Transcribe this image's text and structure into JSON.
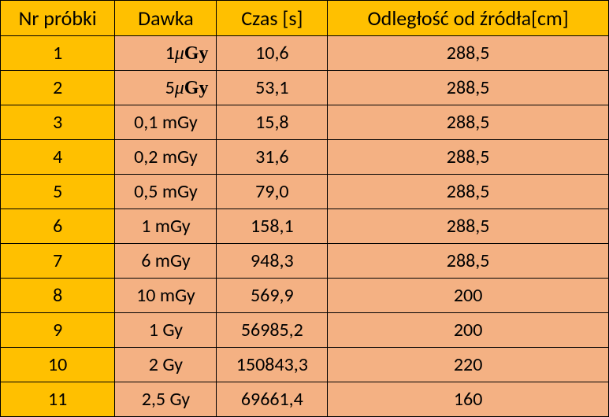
{
  "columns": {
    "sample": "Nr próbki",
    "dose": "Dawka",
    "time": "Czas [s]",
    "distance": "Odległość od źródła[cm]"
  },
  "mu_unit": "Gy",
  "rows": [
    {
      "n": "1",
      "dose_pre": "1",
      "dose_mu": true,
      "dose_post": "",
      "time": "10,6",
      "dist": "288,5",
      "dose_align": "right"
    },
    {
      "n": "2",
      "dose_pre": "5",
      "dose_mu": true,
      "dose_post": "",
      "time": "53,1",
      "dist": "288,5",
      "dose_align": "right"
    },
    {
      "n": "3",
      "dose_pre": "0,1 mGy",
      "dose_mu": false,
      "dose_post": "",
      "time": "15,8",
      "dist": "288,5",
      "dose_align": "center"
    },
    {
      "n": "4",
      "dose_pre": "0,2 mGy",
      "dose_mu": false,
      "dose_post": "",
      "time": "31,6",
      "dist": "288,5",
      "dose_align": "center"
    },
    {
      "n": "5",
      "dose_pre": "0,5 mGy",
      "dose_mu": false,
      "dose_post": "",
      "time": "79,0",
      "dist": "288,5",
      "dose_align": "center"
    },
    {
      "n": "6",
      "dose_pre": "1 mGy",
      "dose_mu": false,
      "dose_post": "",
      "time": "158,1",
      "dist": "288,5",
      "dose_align": "center"
    },
    {
      "n": "7",
      "dose_pre": "6 mGy",
      "dose_mu": false,
      "dose_post": "",
      "time": "948,3",
      "dist": "288,5",
      "dose_align": "center"
    },
    {
      "n": "8",
      "dose_pre": "10 mGy",
      "dose_mu": false,
      "dose_post": "",
      "time": "569,9",
      "dist": "200",
      "dose_align": "center"
    },
    {
      "n": "9",
      "dose_pre": "1 Gy",
      "dose_mu": false,
      "dose_post": "",
      "time": "56985,2",
      "dist": "200",
      "dose_align": "center"
    },
    {
      "n": "10",
      "dose_pre": "2 Gy",
      "dose_mu": false,
      "dose_post": "",
      "time": "150843,3",
      "dist": "220",
      "dose_align": "center"
    },
    {
      "n": "11",
      "dose_pre": "2,5 Gy",
      "dose_mu": false,
      "dose_post": "",
      "time": "69661,4",
      "dist": "160",
      "dose_align": "center"
    }
  ],
  "colors": {
    "header_bg": "#ffc000",
    "sample_bg": "#ffc000",
    "data_bg": "#f4b183",
    "border": "#000000"
  }
}
